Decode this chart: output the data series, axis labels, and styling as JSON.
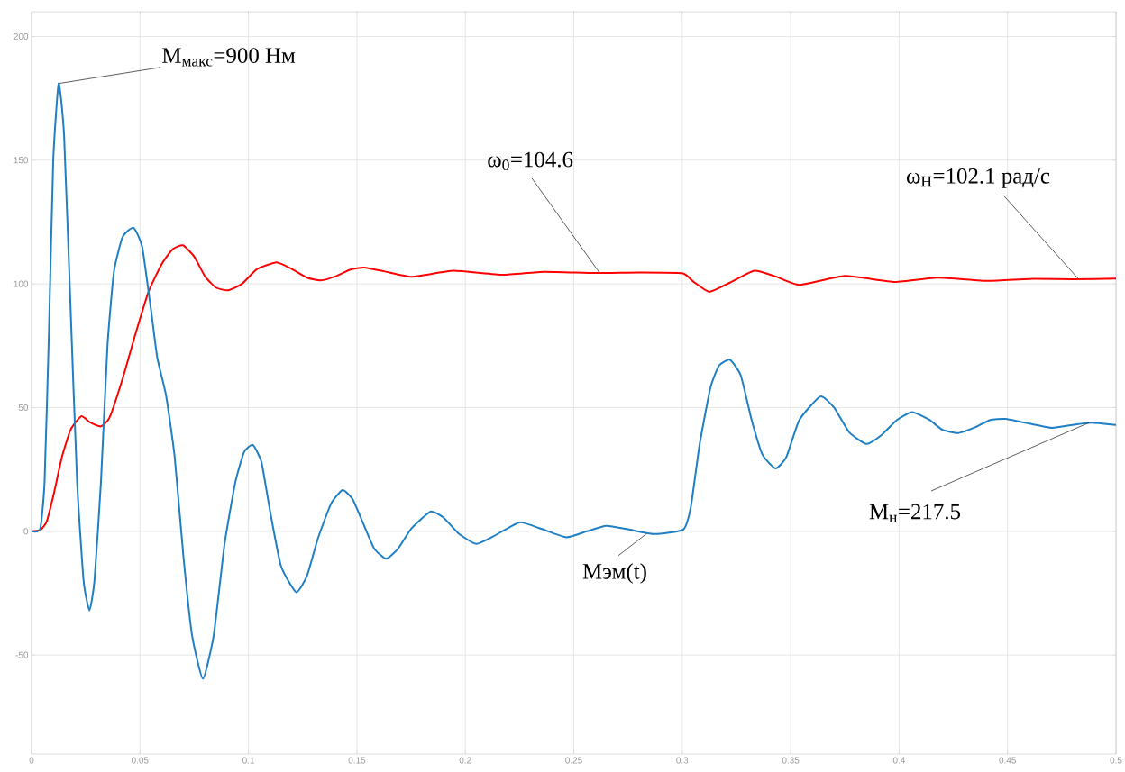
{
  "chart_data": {
    "type": "line",
    "xlim": [
      0,
      0.5
    ],
    "ylim": [
      -90,
      210
    ],
    "xticks": [
      0,
      0.05,
      0.1,
      0.15,
      0.2,
      0.25,
      0.3,
      0.35,
      0.4,
      0.45,
      0.5
    ],
    "yticks": [
      -50,
      0,
      50,
      100,
      150,
      200
    ],
    "grid": true,
    "line_style": "solid",
    "marker": "none",
    "series": [
      {
        "color": "#ff0000",
        "x": [
          0,
          0.004,
          0.007,
          0.0104,
          0.014,
          0.018,
          0.0229,
          0.027,
          0.032,
          0.036,
          0.042,
          0.048,
          0.054,
          0.06,
          0.065,
          0.0698,
          0.075,
          0.08,
          0.085,
          0.0906,
          0.097,
          0.104,
          0.113,
          0.12,
          0.127,
          0.1334,
          0.14,
          0.147,
          0.1534,
          0.163,
          0.1754,
          0.1946,
          0.217,
          0.236,
          0.26,
          0.28,
          0.3,
          0.305,
          0.3125,
          0.322,
          0.3333,
          0.343,
          0.354,
          0.375,
          0.398,
          0.4177,
          0.441,
          0.46,
          0.48,
          0.5
        ],
        "values": [
          0,
          0.5,
          4,
          15.7,
          30,
          41,
          46.5,
          44,
          42.4,
          46,
          61.7,
          80,
          97,
          108,
          114,
          115.6,
          111,
          103,
          98.5,
          97.4,
          100,
          106,
          108.7,
          106,
          102.5,
          101.4,
          103,
          105.8,
          106.6,
          105,
          102.9,
          105.3,
          103.7,
          104.9,
          104.4,
          104.6,
          104.3,
          101,
          96.8,
          100.5,
          105.3,
          103,
          99.6,
          103.2,
          100.8,
          102.5,
          101.2,
          102,
          101.9,
          102.1
        ]
      },
      {
        "color": "#1f7fc4",
        "x": [
          0,
          0.004,
          0.006,
          0.008,
          0.01,
          0.0125,
          0.015,
          0.018,
          0.021,
          0.024,
          0.0267,
          0.029,
          0.032,
          0.035,
          0.038,
          0.042,
          0.047,
          0.051,
          0.055,
          0.058,
          0.062,
          0.066,
          0.07,
          0.074,
          0.079,
          0.084,
          0.089,
          0.094,
          0.098,
          0.102,
          0.106,
          0.11,
          0.115,
          0.122,
          0.127,
          0.132,
          0.138,
          0.1434,
          0.148,
          0.153,
          0.158,
          0.1635,
          0.169,
          0.175,
          0.184,
          0.19,
          0.197,
          0.205,
          0.213,
          0.225,
          0.235,
          0.2466,
          0.256,
          0.265,
          0.275,
          0.287,
          0.3005,
          0.304,
          0.308,
          0.313,
          0.317,
          0.322,
          0.327,
          0.332,
          0.337,
          0.343,
          0.348,
          0.354,
          0.3637,
          0.37,
          0.377,
          0.385,
          0.392,
          0.399,
          0.406,
          0.414,
          0.42,
          0.4273,
          0.435,
          0.442,
          0.449,
          0.46,
          0.4705,
          0.48,
          0.4884,
          0.5
        ],
        "values": [
          0,
          1,
          20,
          80,
          150,
          181,
          160,
          90,
          20,
          -20,
          -32,
          -20,
          20,
          75,
          105,
          119,
          122.7,
          115,
          90,
          70,
          55,
          30,
          -10,
          -42,
          -59.6,
          -42,
          -5,
          20,
          32,
          34.9,
          28,
          8,
          -14,
          -24.6,
          -18,
          -3,
          11,
          16.7,
          13,
          3,
          -7,
          -11.1,
          -7,
          1,
          8,
          5.5,
          -1,
          -5.1,
          -2,
          3.6,
          1,
          -2.4,
          0,
          2.2,
          0.8,
          -1.1,
          0.7,
          10,
          35,
          58,
          67,
          69.3,
          63,
          45,
          31,
          25.4,
          30,
          45,
          54.5,
          50,
          40,
          35.3,
          39,
          45,
          48.2,
          45,
          41,
          39.7,
          42,
          45,
          45.4,
          43.5,
          41.8,
          43,
          43.9,
          43
        ]
      }
    ],
    "annotations": [
      {
        "text": "M$_{макс}$=900 Нм",
        "x": 0.0125,
        "y": 181
      },
      {
        "text": "ω$_{0}$=104.6",
        "x": 0.2618,
        "y": 104.6
      },
      {
        "text": "ω$_{Н}$=102.1 рад/с",
        "x": 0.4826,
        "y": 102.1
      },
      {
        "text": "Mэм(t)",
        "x": 0.2835,
        "y": -1
      },
      {
        "text": "M$_{н}$=217.5",
        "x": 0.4876,
        "y": 43.9
      }
    ]
  }
}
